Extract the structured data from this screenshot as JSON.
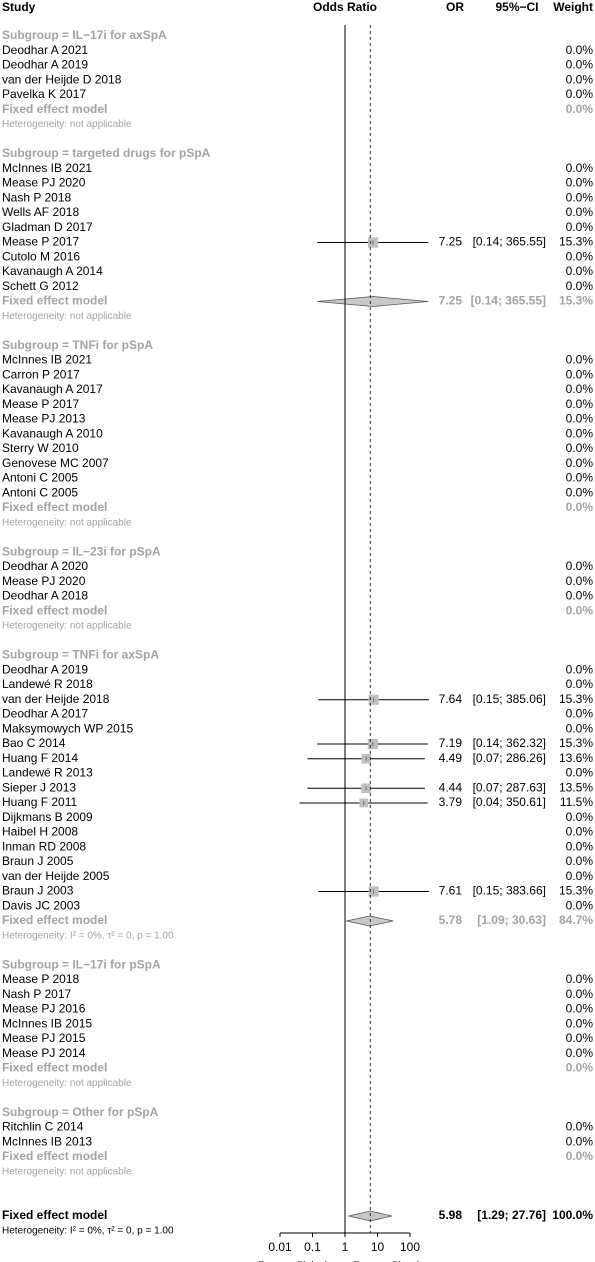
{
  "chart_data": {
    "type": "forest",
    "header": {
      "study": "Study",
      "plot": "Odds Ratio",
      "or": "OR",
      "ci": "95%−CI",
      "weight": "Weight"
    },
    "log_scale": true,
    "xlim": [
      0.01,
      100
    ],
    "xticks": [
      0.01,
      0.1,
      1,
      10,
      100
    ],
    "reference": 1,
    "favours_left": "Favours Biologics",
    "favours_right": "Favours Placebo",
    "square_color": "#c0c0c0",
    "diamond_color": "#c8c8c8",
    "groups": [
      {
        "title": "Subgroup = IL−17i for axSpA",
        "studies": [
          {
            "name": "Deodhar A 2021",
            "weight": {
              "value": 0,
              "label": "0.0%"
            }
          },
          {
            "name": "Deodhar A 2019",
            "weight": {
              "value": 0,
              "label": "0.0%"
            }
          },
          {
            "name": "van der Heijde D 2018",
            "weight": {
              "value": 0,
              "label": "0.0%"
            }
          },
          {
            "name": "Pavelka K 2017",
            "weight": {
              "value": 0,
              "label": "0.0%"
            }
          }
        ],
        "fixed": {
          "label": "Fixed effect model",
          "weight": {
            "value": 0,
            "label": "0.0%"
          }
        },
        "heterogeneity": "Heterogeneity: not applicable"
      },
      {
        "title": "Subgroup = targeted drugs for pSpA",
        "studies": [
          {
            "name": "McInnes IB 2021",
            "weight": {
              "value": 0,
              "label": "0.0%"
            }
          },
          {
            "name": "Mease PJ 2020",
            "weight": {
              "value": 0,
              "label": "0.0%"
            }
          },
          {
            "name": "Nash P 2018",
            "weight": {
              "value": 0,
              "label": "0.0%"
            }
          },
          {
            "name": "Wells AF 2018",
            "weight": {
              "value": 0,
              "label": "0.0%"
            }
          },
          {
            "name": "Gladman D 2017",
            "weight": {
              "value": 0,
              "label": "0.0%"
            }
          },
          {
            "name": "Mease P 2017",
            "or": 7.25,
            "lower": 0.14,
            "upper": 365.55,
            "ci_label": "[0.14; 365.55]",
            "weight": {
              "value": 15.3,
              "label": "15.3%"
            }
          },
          {
            "name": "Cutolo M 2016",
            "weight": {
              "value": 0,
              "label": "0.0%"
            }
          },
          {
            "name": "Kavanaugh A 2014",
            "weight": {
              "value": 0,
              "label": "0.0%"
            }
          },
          {
            "name": "Schett G 2012",
            "weight": {
              "value": 0,
              "label": "0.0%"
            }
          }
        ],
        "fixed": {
          "label": "Fixed effect model",
          "or": 7.25,
          "lower": 0.14,
          "upper": 365.55,
          "ci_label": "[0.14; 365.55]",
          "weight": {
            "value": 15.3,
            "label": "15.3%"
          }
        },
        "heterogeneity": "Heterogeneity: not applicable"
      },
      {
        "title": "Subgroup = TNFi for pSpA",
        "studies": [
          {
            "name": "McInnes IB 2021",
            "weight": {
              "value": 0,
              "label": "0.0%"
            }
          },
          {
            "name": "Carron P 2017",
            "weight": {
              "value": 0,
              "label": "0.0%"
            }
          },
          {
            "name": "Kavanaugh A 2017",
            "weight": {
              "value": 0,
              "label": "0.0%"
            }
          },
          {
            "name": "Mease P 2017",
            "weight": {
              "value": 0,
              "label": "0.0%"
            }
          },
          {
            "name": "Mease PJ 2013",
            "weight": {
              "value": 0,
              "label": "0.0%"
            }
          },
          {
            "name": "Kavanaugh A 2010",
            "weight": {
              "value": 0,
              "label": "0.0%"
            }
          },
          {
            "name": "Sterry W 2010",
            "weight": {
              "value": 0,
              "label": "0.0%"
            }
          },
          {
            "name": "Genovese MC 2007",
            "weight": {
              "value": 0,
              "label": "0.0%"
            }
          },
          {
            "name": "Antoni C 2005",
            "weight": {
              "value": 0,
              "label": "0.0%"
            }
          },
          {
            "name": "Antoni C 2005",
            "weight": {
              "value": 0,
              "label": "0.0%"
            }
          }
        ],
        "fixed": {
          "label": "Fixed effect model",
          "weight": {
            "value": 0,
            "label": "0.0%"
          }
        },
        "heterogeneity": "Heterogeneity: not applicable"
      },
      {
        "title": "Subgroup = IL−23i for pSpA",
        "studies": [
          {
            "name": "Deodhar A 2020",
            "weight": {
              "value": 0,
              "label": "0.0%"
            }
          },
          {
            "name": "Mease PJ 2020",
            "weight": {
              "value": 0,
              "label": "0.0%"
            }
          },
          {
            "name": "Deodhar A 2018",
            "weight": {
              "value": 0,
              "label": "0.0%"
            }
          }
        ],
        "fixed": {
          "label": "Fixed effect model",
          "weight": {
            "value": 0,
            "label": "0.0%"
          }
        },
        "heterogeneity": "Heterogeneity: not applicable"
      },
      {
        "title": "Subgroup = TNFi for axSpA",
        "studies": [
          {
            "name": "Deodhar A 2019",
            "weight": {
              "value": 0,
              "label": "0.0%"
            }
          },
          {
            "name": "Landewé R 2018",
            "weight": {
              "value": 0,
              "label": "0.0%"
            }
          },
          {
            "name": "van der Heijde 2018",
            "or": 7.64,
            "lower": 0.15,
            "upper": 385.06,
            "ci_label": "[0.15; 385.06]",
            "weight": {
              "value": 15.3,
              "label": "15.3%"
            }
          },
          {
            "name": "Deodhar A 2017",
            "weight": {
              "value": 0,
              "label": "0.0%"
            }
          },
          {
            "name": "Maksymowych WP 2015",
            "weight": {
              "value": 0,
              "label": "0.0%"
            }
          },
          {
            "name": "Bao C 2014",
            "or": 7.19,
            "lower": 0.14,
            "upper": 362.32,
            "ci_label": "[0.14; 362.32]",
            "weight": {
              "value": 15.3,
              "label": "15.3%"
            }
          },
          {
            "name": "Huang F 2014",
            "or": 4.49,
            "lower": 0.07,
            "upper": 286.26,
            "ci_label": "[0.07; 286.26]",
            "weight": {
              "value": 13.6,
              "label": "13.6%"
            }
          },
          {
            "name": "Landewé R 2013",
            "weight": {
              "value": 0,
              "label": "0.0%"
            }
          },
          {
            "name": "Sieper J 2013",
            "or": 4.44,
            "lower": 0.07,
            "upper": 287.63,
            "ci_label": "[0.07; 287.63]",
            "weight": {
              "value": 13.5,
              "label": "13.5%"
            }
          },
          {
            "name": "Huang F 2011",
            "or": 3.79,
            "lower": 0.04,
            "upper": 350.61,
            "ci_label": "[0.04; 350.61]",
            "weight": {
              "value": 11.5,
              "label": "11.5%"
            }
          },
          {
            "name": "Dijkmans B 2009",
            "weight": {
              "value": 0,
              "label": "0.0%"
            }
          },
          {
            "name": "Haibel H 2008",
            "weight": {
              "value": 0,
              "label": "0.0%"
            }
          },
          {
            "name": "Inman RD 2008",
            "weight": {
              "value": 0,
              "label": "0.0%"
            }
          },
          {
            "name": "Braun J 2005",
            "weight": {
              "value": 0,
              "label": "0.0%"
            }
          },
          {
            "name": "van der Heijde 2005",
            "weight": {
              "value": 0,
              "label": "0.0%"
            }
          },
          {
            "name": "Braun J 2003",
            "or": 7.61,
            "lower": 0.15,
            "upper": 383.66,
            "ci_label": "[0.15; 383.66]",
            "weight": {
              "value": 15.3,
              "label": "15.3%"
            }
          },
          {
            "name": "Davis JC 2003",
            "weight": {
              "value": 0,
              "label": "0.0%"
            }
          }
        ],
        "fixed": {
          "label": "Fixed effect model",
          "or": 5.78,
          "lower": 1.09,
          "upper": 30.63,
          "ci_label": "[1.09; 30.63]",
          "weight": {
            "value": 84.7,
            "label": "84.7%"
          }
        },
        "heterogeneity": "Heterogeneity: I² = 0%, τ² = 0, p = 1.00"
      },
      {
        "title": "Subgroup = IL−17i for pSpA",
        "studies": [
          {
            "name": "Mease P 2018",
            "weight": {
              "value": 0,
              "label": "0.0%"
            }
          },
          {
            "name": "Nash P 2017",
            "weight": {
              "value": 0,
              "label": "0.0%"
            }
          },
          {
            "name": "Mease PJ 2016",
            "weight": {
              "value": 0,
              "label": "0.0%"
            }
          },
          {
            "name": "McInnes IB 2015",
            "weight": {
              "value": 0,
              "label": "0.0%"
            }
          },
          {
            "name": "Mease PJ 2015",
            "weight": {
              "value": 0,
              "label": "0.0%"
            }
          },
          {
            "name": "Mease PJ 2014",
            "weight": {
              "value": 0,
              "label": "0.0%"
            }
          }
        ],
        "fixed": {
          "label": "Fixed effect model",
          "weight": {
            "value": 0,
            "label": "0.0%"
          }
        },
        "heterogeneity": "Heterogeneity: not applicable"
      },
      {
        "title": "Subgroup = Other for pSpA",
        "studies": [
          {
            "name": "Ritchlin C 2014",
            "weight": {
              "value": 0,
              "label": "0.0%"
            }
          },
          {
            "name": "McInnes IB 2013",
            "weight": {
              "value": 0,
              "label": "0.0%"
            }
          }
        ],
        "fixed": {
          "label": "Fixed effect model",
          "weight": {
            "value": 0,
            "label": "0.0%"
          }
        },
        "heterogeneity": "Heterogeneity: not applicable"
      }
    ],
    "overall": {
      "label": "Fixed effect model",
      "or": 5.98,
      "lower": 1.29,
      "upper": 27.76,
      "ci_label": "[1.29; 27.76]",
      "weight": {
        "value": 100,
        "label": "100.0%"
      },
      "heterogeneity": "Heterogeneity: I² = 0%, τ² = 0, p = 1.00"
    }
  }
}
